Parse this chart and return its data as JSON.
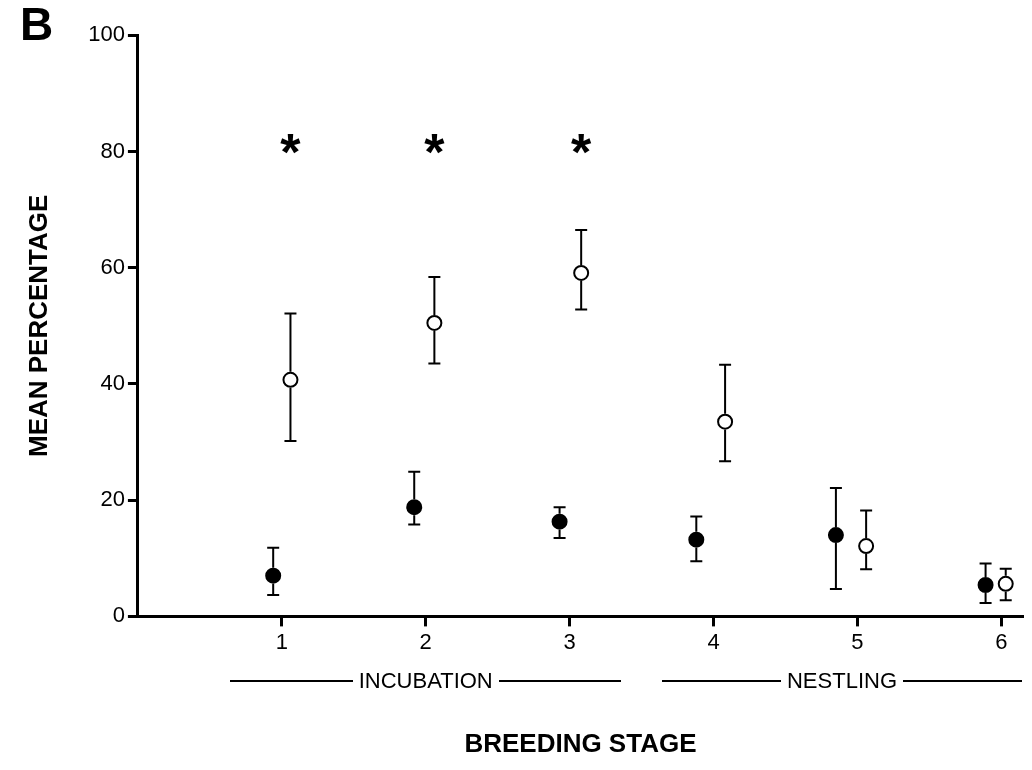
{
  "chart_data": {
    "type": "scatter",
    "title": "B",
    "xlabel": "BREEDING STAGE",
    "ylabel": "MEAN PERCENTAGE",
    "xlim": [
      0,
      6.15
    ],
    "xticks": [
      1,
      2,
      3,
      4,
      5,
      6
    ],
    "ylim": [
      0,
      100
    ],
    "yticks": [
      0,
      20,
      40,
      60,
      80,
      100
    ],
    "grid": false,
    "legend": false,
    "marker": "circle",
    "series": [
      {
        "color": "#000000",
        "x": [
          0.94,
          1.92,
          2.93,
          3.88,
          4.85,
          5.89
        ],
        "values": [
          7,
          18.8,
          16.3,
          13.2,
          14,
          5.4
        ],
        "errors": [
          [
            3.7,
            11.8
          ],
          [
            15.8,
            24.9
          ],
          [
            13.5,
            18.8
          ],
          [
            9.5,
            17.2
          ],
          [
            4.7,
            22.1
          ],
          [
            2.3,
            9.1
          ]
        ]
      },
      {
        "color": "#000000",
        "x": [
          1.06,
          2.06,
          3.08,
          4.08,
          5.06,
          6.03
        ],
        "values": [
          40.7,
          50.5,
          59.1,
          33.5,
          12.1,
          5.6
        ],
        "errors": [
          [
            30.2,
            52.1
          ],
          [
            43.5,
            58.4
          ],
          [
            52.8,
            66.5
          ],
          [
            26.7,
            43.3
          ],
          [
            8.1,
            18.2
          ],
          [
            2.8,
            8.2
          ]
        ]
      }
    ],
    "annotations": [
      "*",
      "*",
      "*",
      "INCUBATION",
      "NESTLING"
    ]
  }
}
